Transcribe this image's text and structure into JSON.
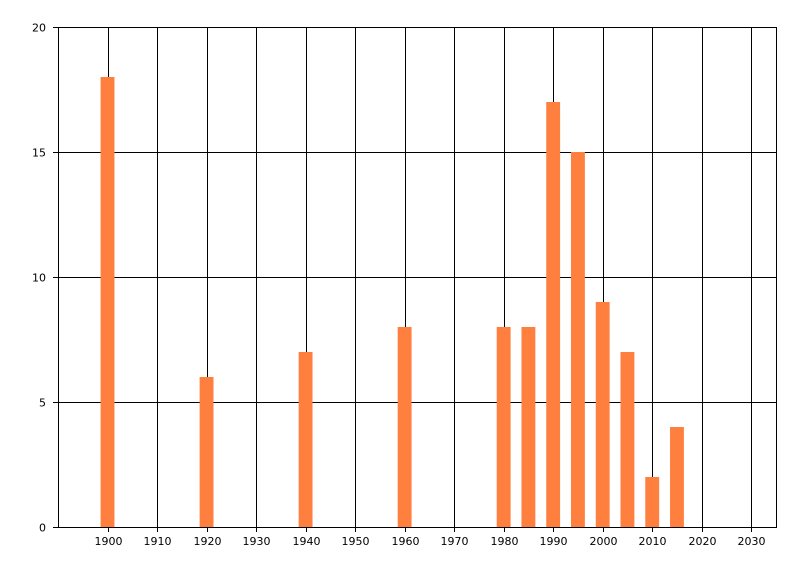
{
  "chart_data": {
    "type": "bar",
    "title": "",
    "xlabel": "",
    "ylabel": "",
    "xlim": [
      1890,
      2035
    ],
    "ylim": [
      0,
      20
    ],
    "x_ticks": [
      1900,
      1910,
      1920,
      1930,
      1940,
      1950,
      1960,
      1970,
      1980,
      1990,
      2000,
      2010,
      2020,
      2030
    ],
    "y_ticks": [
      0,
      5,
      10,
      15,
      20
    ],
    "grid": true,
    "bar_color": "#FF7F3F",
    "x": [
      1900,
      1920,
      1940,
      1960,
      1980,
      1985,
      1990,
      1995,
      2000,
      2005,
      2010,
      2015
    ],
    "values": [
      18,
      6,
      7,
      8,
      8,
      8,
      17,
      15,
      9,
      7,
      2,
      4
    ]
  }
}
